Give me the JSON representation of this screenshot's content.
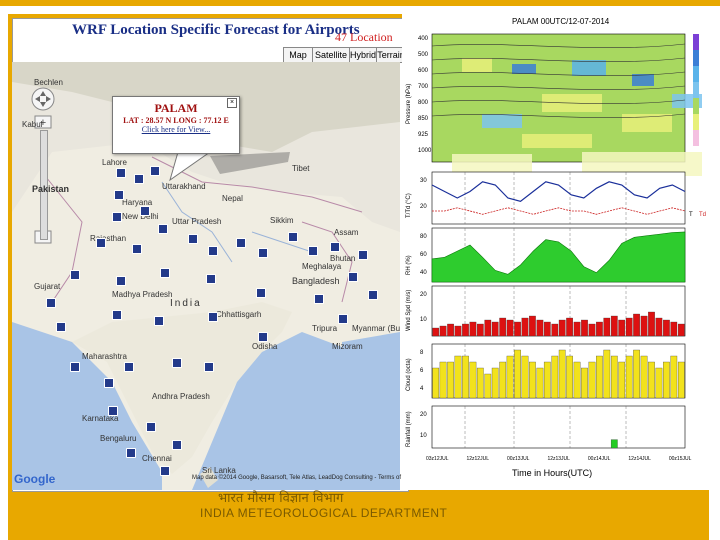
{
  "map_app": {
    "title": "WRF Location Specific Forecast for Airports",
    "locations_note": "47 Location",
    "map_type_buttons": [
      "Map",
      "Satellite",
      "Hybrid",
      "Terrain"
    ],
    "google_label": "Google",
    "copyright": "Map data ©2014 Google, Basarsoft, Tele Atlas, LeadDog Consulting - Terms of Use",
    "popup": {
      "name": "PALAM",
      "coords": "LAT : 28.57 N   LONG : 77.12 E",
      "link": "Click here for View..."
    },
    "place_labels": [
      "Bechlen",
      "Kabul",
      "Pakistan",
      "Lahore",
      "Tibet",
      "Haryana",
      "New Delhi",
      "Uttar Pradesh",
      "Rajasthan",
      "Madhya Pradesh",
      "India",
      "Bhutan",
      "Bangladesh",
      "Maharashtra",
      "Andhra Pradesh",
      "Karnataka",
      "Bengaluru",
      "Chennai",
      "Sri Lanka",
      "Myanmar (Burma)",
      "Tripura",
      "Mizoram",
      "Odisha",
      "Gujarat",
      "Chhattisgarh",
      "Nepal",
      "Uttarakhand",
      "Sikkim",
      "Assam",
      "Meghalaya"
    ]
  },
  "chart_panel": {
    "title": "PALAM 00UTC/12-07-2014",
    "xlabel": "Time in Hours(UTC)",
    "x_ticks": [
      "03z12JUL",
      "12z12JUL",
      "00z13JUL",
      "12z13JUL",
      "00z14JUL",
      "12z14JUL",
      "00z15JUL"
    ]
  },
  "chart_data": [
    {
      "type": "heatmap",
      "title": "PALAM 00UTC/12-07-2014",
      "ylabel": "Pressure (hPa)",
      "y_ticks": [
        400,
        500,
        600,
        700,
        800,
        850,
        925,
        1000
      ]
    },
    {
      "type": "line",
      "ylabel": "T/Td (°C)",
      "y_ticks": [
        30,
        20
      ],
      "series": [
        {
          "name": "T",
          "values": [
            32,
            30,
            28,
            30,
            33,
            32,
            28,
            27,
            30,
            33,
            32,
            29,
            28,
            31,
            33,
            32,
            29,
            28,
            31,
            32,
            30
          ]
        },
        {
          "name": "Td",
          "values": [
            24,
            24,
            25,
            24,
            23,
            24,
            25,
            24,
            23,
            24,
            25,
            24,
            24,
            23,
            24,
            25,
            24,
            23,
            24,
            25,
            24
          ]
        }
      ],
      "legend": [
        "T",
        "Td"
      ]
    },
    {
      "type": "area",
      "ylabel": "RH (%)",
      "y_ticks": [
        80,
        60,
        40
      ],
      "values": [
        60,
        62,
        70,
        78,
        62,
        45,
        40,
        52,
        70,
        85,
        82,
        70,
        50,
        42,
        58,
        80,
        88,
        90,
        92,
        94,
        95
      ]
    },
    {
      "type": "bar",
      "ylabel": "Wind Spd (m/s)",
      "y_ticks": [
        20,
        10
      ],
      "values": [
        4,
        5,
        6,
        5,
        6,
        7,
        6,
        8,
        7,
        9,
        8,
        7,
        9,
        10,
        8,
        7,
        6,
        8,
        9,
        7,
        8,
        6,
        7,
        9,
        10,
        8,
        9,
        11,
        10,
        12,
        9,
        8,
        7,
        6
      ]
    },
    {
      "type": "bar",
      "ylabel": "Cloud (octa)",
      "y_ticks": [
        8,
        6,
        4
      ],
      "values": [
        5,
        6,
        6,
        7,
        7,
        6,
        5,
        4,
        5,
        6,
        7,
        8,
        7,
        6,
        5,
        6,
        7,
        8,
        7,
        6,
        5,
        6,
        7,
        8,
        7,
        6,
        7,
        8,
        7,
        6,
        5,
        6,
        7,
        6
      ]
    },
    {
      "type": "bar",
      "ylabel": "Rainfall (mm)",
      "y_ticks": [
        20,
        10
      ],
      "values": [
        0,
        0,
        0,
        0,
        0,
        0,
        0,
        0,
        0,
        0,
        0,
        0,
        0,
        0,
        0,
        0,
        0,
        0,
        0,
        0,
        0,
        0,
        0,
        0,
        5,
        0,
        0,
        0,
        0,
        0,
        0,
        0,
        0,
        0
      ]
    }
  ],
  "footer": {
    "hindi": "भारत मौसम विज्ञान विभाग",
    "english": "INDIA METEOROLOGICAL DEPARTMENT"
  },
  "colors": {
    "accent_gold": "#e8a800",
    "title_blue": "#1a2f86",
    "airport_marker": "#233a8a",
    "rh_green": "#2ecc2e",
    "wind_red": "#dd1111",
    "cloud_yellow": "#f2e21c",
    "rain_green": "#22cc22"
  }
}
